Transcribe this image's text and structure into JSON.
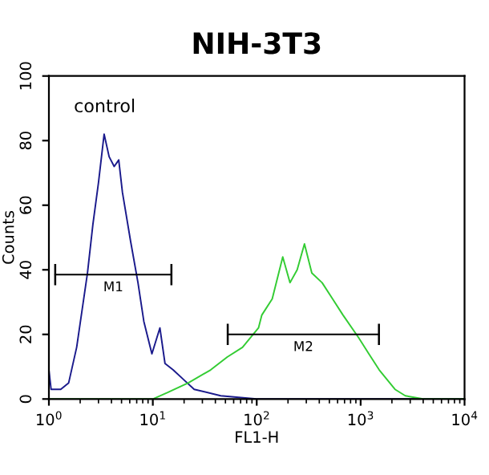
{
  "chart_data": {
    "type": "line",
    "title": "NIH-3T3",
    "xlabel": "FL1-H",
    "ylabel": "Counts",
    "log": "x",
    "xlim": [
      1,
      10000
    ],
    "ylim": [
      0,
      100
    ],
    "xticks": [
      {
        "value": 1,
        "label": "10$^{0}$"
      },
      {
        "value": 10,
        "label": "10$^{1}$"
      },
      {
        "value": 100,
        "label": "10$^{2}$"
      },
      {
        "value": 1000,
        "label": "10$^{3}$"
      },
      {
        "value": 10000,
        "label": "10$^{4}$"
      }
    ],
    "yticks": [
      0,
      20,
      40,
      60,
      80,
      100
    ],
    "grid": false,
    "annotations": [
      "control"
    ],
    "series": [
      {
        "color": "#1a1a8c",
        "x": [
          1,
          1.05,
          1.3,
          1.55,
          1.85,
          2.35,
          2.65,
          3.0,
          3.4,
          3.8,
          4.25,
          4.7,
          5.1,
          6.1,
          7.2,
          8.2,
          9.8,
          11.7,
          13.1,
          15.7,
          19.8,
          25,
          45,
          100,
          10000
        ],
        "values": [
          9,
          3,
          3,
          5,
          16,
          39,
          54,
          67,
          82,
          75,
          72,
          74,
          64,
          49,
          36,
          24,
          14,
          22,
          11,
          9,
          6,
          3,
          1,
          0,
          0
        ]
      },
      {
        "color": "#33cc33",
        "x": [
          1,
          10,
          13.9,
          22,
          36,
          52,
          73,
          104,
          112,
          141,
          178,
          209,
          245,
          288,
          339,
          426,
          537,
          676,
          955,
          1200,
          1510,
          2140,
          2690,
          4000,
          10000
        ],
        "values": [
          0,
          0,
          2,
          5,
          9,
          13,
          16,
          22,
          26,
          31,
          44,
          36,
          40,
          48,
          39,
          36,
          31,
          26,
          19,
          14,
          9,
          3,
          1,
          0,
          0
        ]
      },
      {
        "name": "M1",
        "color": "#000000",
        "x": [
          1.15,
          15.1
        ],
        "values": [
          38.5,
          38.5
        ]
      },
      {
        "name": "M2",
        "color": "#000000",
        "x": [
          52.6,
          1500
        ],
        "values": [
          20,
          20
        ]
      }
    ]
  }
}
